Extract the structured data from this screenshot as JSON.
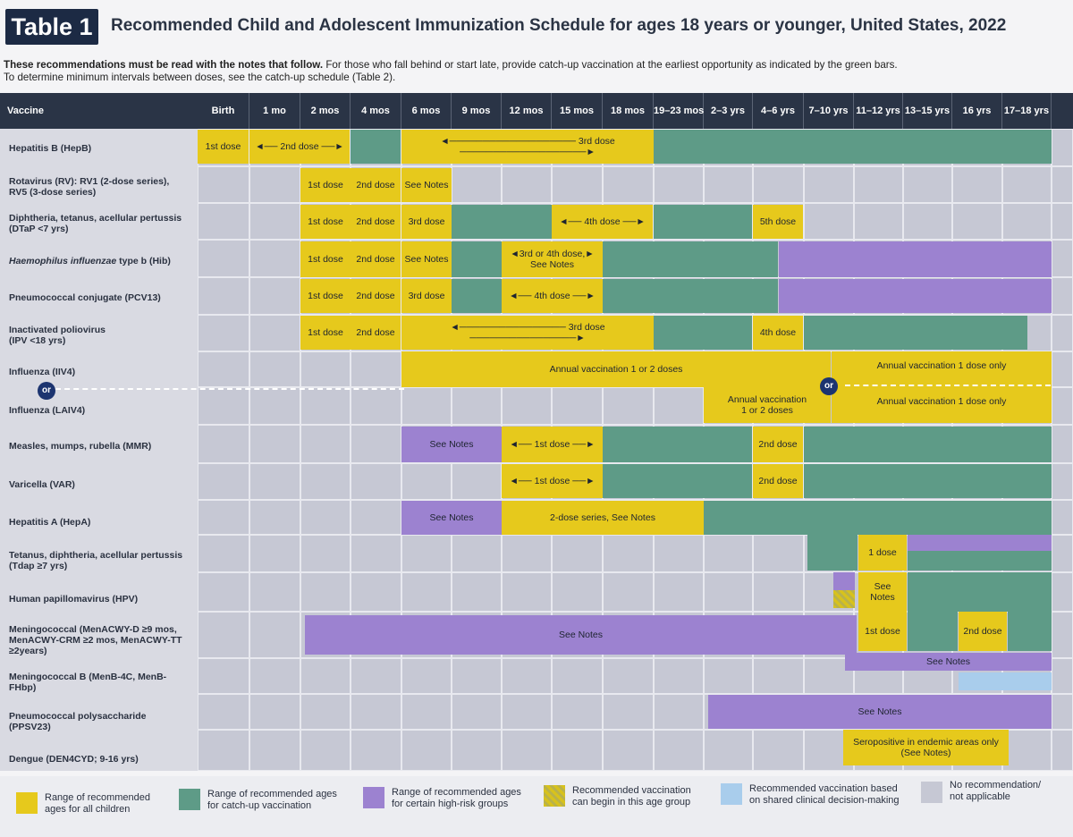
{
  "title": {
    "badge": "Table 1",
    "text": "Recommended Child and Adolescent Immunization Schedule for ages 18 years or younger, United States, 2022"
  },
  "notes": {
    "bold": "These recommendations must be read with the notes that follow.",
    "line1": " For those who fall behind or start late, provide catch-up vaccination at the earliest opportunity as indicated by the green bars.",
    "line2": "To determine minimum intervals between doses, see the catch-up schedule (Table 2)."
  },
  "columns": {
    "vaccine_label": "Vaccine",
    "ages": [
      "Birth",
      "1 mo",
      "2 mos",
      "4 mos",
      "6 mos",
      "9 mos",
      "12 mos",
      "15 mos",
      "18 mos",
      "19–23 mos",
      "2–3 yrs",
      "4–6 yrs",
      "7–10 yrs",
      "11–12 yrs",
      "13–15 yrs",
      "16 yrs",
      "17–18 yrs"
    ]
  },
  "vaccines": [
    {
      "name": "Hepatitis B (HepB)"
    },
    {
      "name_l1": "Rotavirus (RV): RV1 (2-dose series),",
      "name_l2": "RV5 (3-dose series)"
    },
    {
      "name_l1": "Diphtheria, tetanus, acellular pertussis",
      "name_l2": "(DTaP <7 yrs)"
    },
    {
      "name_italic": "Haemophilus influenzae",
      "name_rest": " type b (Hib)"
    },
    {
      "name": "Pneumococcal conjugate (PCV13)"
    },
    {
      "name_l1": "Inactivated poliovirus",
      "name_l2": "(IPV <18 yrs)"
    },
    {
      "name": "Influenza (IIV4)"
    },
    {
      "name": "Influenza (LAIV4)"
    },
    {
      "name": "Measles, mumps, rubella (MMR)"
    },
    {
      "name": "Varicella (VAR)"
    },
    {
      "name": "Hepatitis A (HepA)"
    },
    {
      "name_l1": "Tetanus, diphtheria, acellular pertussis",
      "name_l2": "(Tdap ≥7 yrs)"
    },
    {
      "name": "Human papillomavirus (HPV)"
    },
    {
      "name_l1": "Meningococcal (MenACWY-D ≥9 mos,",
      "name_l2": "MenACWY-CRM ≥2 mos, MenACWY-TT",
      "name_l3": "≥2years)"
    },
    {
      "name_l1": "Meningococcal B (MenB-4C, MenB-",
      "name_l2": "FHbp)"
    },
    {
      "name_l1": "Pneumococcal polysaccharide",
      "name_l2": "(PPSV23)"
    },
    {
      "name": "Dengue (DEN4CYD; 9-16 yrs)"
    }
  ],
  "labels": {
    "dose1": "1st dose",
    "dose2": "2nd dose",
    "dose3": "3rd dose",
    "dose2_arrow": "◄── 2nd dose ──►",
    "dose3_hepb": "◄─────────────────── 3rd dose ───────────────────►",
    "see_notes": "See Notes",
    "dtap_4th": "◄── 4th dose ──►",
    "dtap_5th": "5th dose",
    "hib_3rd4th_l1": "◄3rd or 4th dose,►",
    "hib_3rd4th_l2": "See Notes",
    "pcv_4th": "◄── 4th dose ──►",
    "ipv_3rd": "◄──────────────── 3rd dose ────────────────►",
    "ipv_4th": "4th dose",
    "flu_annual_12": "Annual vaccination 1 or 2 doses",
    "flu_annual_1": "Annual vaccination 1 dose only",
    "laiv_annual_l1": "Annual vaccination",
    "laiv_annual_l2": "1 or 2 doses",
    "or": "or",
    "mmr_1st": "◄── 1st dose ──►",
    "mmr_2nd": "2nd dose",
    "var_1st": "◄── 1st dose ──►",
    "var_2nd": "2nd dose",
    "hepa_series": "2-dose series, See Notes",
    "tdap_1": "1 dose",
    "hpv_l1": "See",
    "hpv_l2": "Notes",
    "men_1st": "1st dose",
    "men_2nd": "2nd dose",
    "dengue_l1": "Seropositive in endemic areas only",
    "dengue_l2": "(See Notes)"
  },
  "legend": [
    {
      "l1": "Range of recommended",
      "l2": "ages for all children",
      "color": "#e6c91c"
    },
    {
      "l1": "Range of recommended ages",
      "l2": "for catch-up vaccination",
      "color": "#5e9b87"
    },
    {
      "l1": "Range of recommended ages",
      "l2": "for certain high-risk groups",
      "color": "#9c82d0"
    },
    {
      "l1": "Recommended vaccination",
      "l2": "can begin in this age group",
      "color": "checker"
    },
    {
      "l1": "Recommended vaccination based",
      "l2": "on shared clinical decision-making",
      "color": "#a9cdec"
    },
    {
      "l1": "No recommendation/",
      "l2": "not applicable",
      "color": "#c6c8d4"
    }
  ]
}
